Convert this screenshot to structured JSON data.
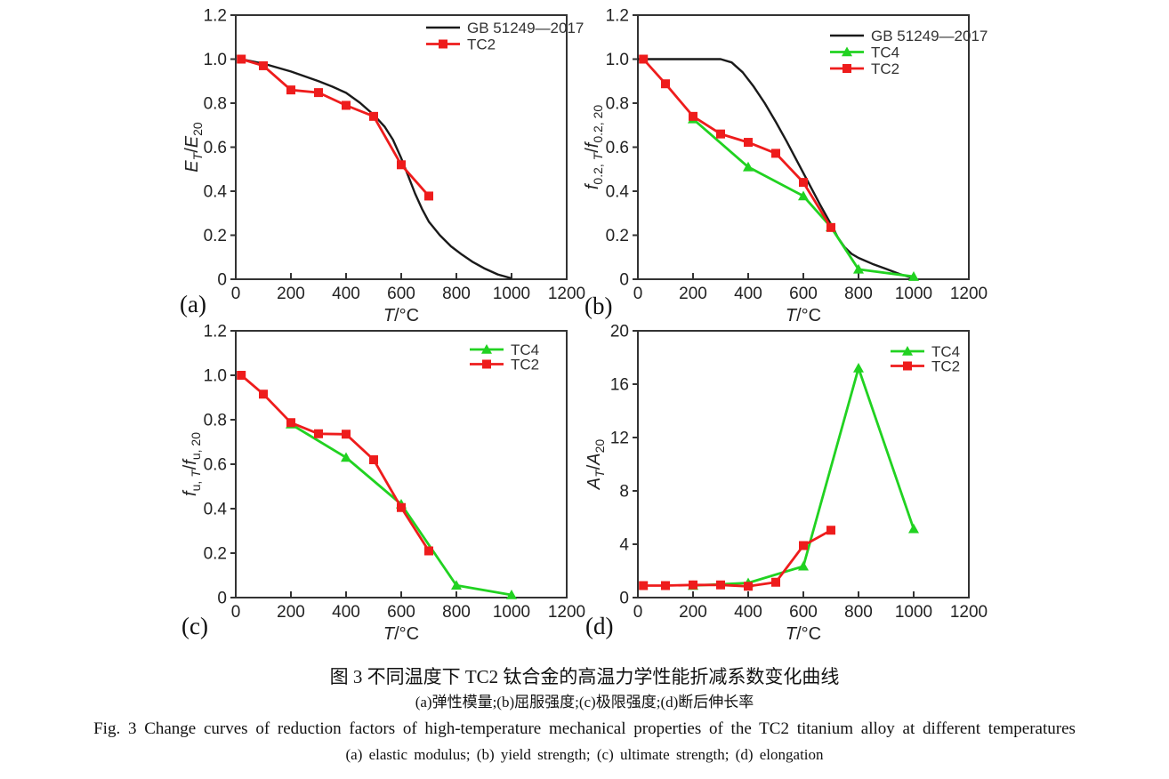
{
  "figure": {
    "caption_zh": "图 3  不同温度下 TC2 钛合金的高温力学性能折减系数变化曲线",
    "caption_zh_sub": "(a)弹性模量;(b)屈服强度;(c)极限强度;(d)断后伸长率",
    "caption_en": "Fig. 3  Change curves of reduction factors of high-temperature mechanical properties of the TC2 titanium alloy at different temperatures",
    "caption_en_sub": "(a) elastic modulus; (b) yield strength; (c) ultimate strength; (d) elongation"
  },
  "panels": [
    {
      "tag": "(a)"
    },
    {
      "tag": "(b)"
    },
    {
      "tag": "(c)"
    },
    {
      "tag": "(d)"
    }
  ],
  "colors": {
    "black": "#1a1a1a",
    "red": "#ee1c1c",
    "green": "#21d221",
    "axis": "#333333",
    "text": "#222222"
  },
  "chart_data": [
    {
      "id": "a",
      "type": "line",
      "xlabel": "T/°C",
      "ylabel": "E_T/E_20",
      "xlabel_parts": [
        [
          "T",
          1,
          0
        ],
        [
          "/°C",
          0,
          0
        ]
      ],
      "ylabel_parts": [
        [
          "E",
          1,
          0
        ],
        [
          "T",
          1,
          1
        ],
        [
          "/",
          0,
          0
        ],
        [
          "E",
          1,
          0
        ],
        [
          "20",
          0,
          1
        ]
      ],
      "xlim": [
        0,
        1200
      ],
      "ylim": [
        0,
        1.2
      ],
      "xticks": {
        "values": [
          0,
          200,
          400,
          600,
          800,
          1000,
          1200
        ],
        "labels": [
          "0",
          "200",
          "400",
          "600",
          "800",
          "1000",
          "1200"
        ]
      },
      "yticks": {
        "values": [
          0,
          0.2,
          0.4,
          0.6,
          0.8,
          1.0,
          1.2
        ],
        "labels": [
          "0",
          "0.2",
          "0.4",
          "0.6",
          "0.8",
          "1.0",
          "1.2"
        ]
      },
      "legend": [
        "GB 51249—2017",
        "TC2"
      ],
      "series": [
        {
          "name": "GB 51249—2017",
          "color": "#1a1a1a",
          "marker": "none",
          "points": [
            [
              20,
              1.0
            ],
            [
              100,
              0.98
            ],
            [
              200,
              0.944
            ],
            [
              300,
              0.9
            ],
            [
              350,
              0.875
            ],
            [
              400,
              0.847
            ],
            [
              450,
              0.802
            ],
            [
              500,
              0.747
            ],
            [
              540,
              0.693
            ],
            [
              570,
              0.634
            ],
            [
              600,
              0.55
            ],
            [
              625,
              0.47
            ],
            [
              650,
              0.39
            ],
            [
              675,
              0.32
            ],
            [
              700,
              0.262
            ],
            [
              740,
              0.2
            ],
            [
              780,
              0.15
            ],
            [
              820,
              0.112
            ],
            [
              860,
              0.078
            ],
            [
              900,
              0.05
            ],
            [
              950,
              0.022
            ],
            [
              1000,
              0.004
            ]
          ]
        },
        {
          "name": "TC2",
          "color": "#ee1c1c",
          "marker": "square",
          "points": [
            [
              20,
              1.0
            ],
            [
              100,
              0.97
            ],
            [
              200,
              0.86
            ],
            [
              300,
              0.848
            ],
            [
              400,
              0.79
            ],
            [
              500,
              0.74
            ],
            [
              600,
              0.52
            ],
            [
              700,
              0.378
            ]
          ]
        }
      ]
    },
    {
      "id": "b",
      "type": "line",
      "xlabel": "T/°C",
      "ylabel": "f_0.2,T/f_0.2,20",
      "xlabel_parts": [
        [
          "T",
          1,
          0
        ],
        [
          "/°C",
          0,
          0
        ]
      ],
      "ylabel_parts": [
        [
          "f",
          1,
          0
        ],
        [
          "0.2, ",
          0,
          1
        ],
        [
          "T",
          1,
          1
        ],
        [
          "/",
          0,
          0
        ],
        [
          "f",
          1,
          0
        ],
        [
          "0.2, 20",
          0,
          1
        ]
      ],
      "xlim": [
        0,
        1200
      ],
      "ylim": [
        0,
        1.2
      ],
      "xticks": {
        "values": [
          0,
          200,
          400,
          600,
          800,
          1000,
          1200
        ],
        "labels": [
          "0",
          "200",
          "400",
          "600",
          "800",
          "1000",
          "1200"
        ]
      },
      "yticks": {
        "values": [
          0,
          0.2,
          0.4,
          0.6,
          0.8,
          1.0,
          1.2
        ],
        "labels": [
          "0",
          "0.2",
          "0.4",
          "0.6",
          "0.8",
          "1.0",
          "1.2"
        ]
      },
      "legend": [
        "GB 51249—2017",
        "TC4",
        "TC2"
      ],
      "series": [
        {
          "name": "GB 51249—2017",
          "color": "#1a1a1a",
          "marker": "none",
          "points": [
            [
              0,
              1.0
            ],
            [
              300,
              1.0
            ],
            [
              340,
              0.985
            ],
            [
              380,
              0.94
            ],
            [
              420,
              0.875
            ],
            [
              460,
              0.8
            ],
            [
              500,
              0.715
            ],
            [
              540,
              0.625
            ],
            [
              580,
              0.53
            ],
            [
              620,
              0.435
            ],
            [
              660,
              0.34
            ],
            [
              700,
              0.25
            ],
            [
              725,
              0.19
            ],
            [
              750,
              0.145
            ],
            [
              775,
              0.115
            ],
            [
              800,
              0.097
            ],
            [
              850,
              0.07
            ],
            [
              900,
              0.047
            ],
            [
              950,
              0.023
            ],
            [
              1000,
              0.004
            ]
          ]
        },
        {
          "name": "TC4",
          "color": "#21d221",
          "marker": "triangle",
          "points": [
            [
              200,
              0.728
            ],
            [
              400,
              0.51
            ],
            [
              600,
              0.378
            ],
            [
              700,
              0.237
            ],
            [
              800,
              0.045
            ],
            [
              1000,
              0.012
            ]
          ]
        },
        {
          "name": "TC2",
          "color": "#ee1c1c",
          "marker": "square",
          "points": [
            [
              20,
              1.0
            ],
            [
              100,
              0.888
            ],
            [
              200,
              0.74
            ],
            [
              300,
              0.66
            ],
            [
              400,
              0.622
            ],
            [
              500,
              0.572
            ],
            [
              600,
              0.44
            ],
            [
              700,
              0.235
            ]
          ]
        }
      ]
    },
    {
      "id": "c",
      "type": "line",
      "xlabel": "T/°C",
      "ylabel": "f_u,T/f_u,20",
      "xlabel_parts": [
        [
          "T",
          1,
          0
        ],
        [
          "/°C",
          0,
          0
        ]
      ],
      "ylabel_parts": [
        [
          "f",
          1,
          0
        ],
        [
          "u, ",
          0,
          1
        ],
        [
          "T",
          1,
          1
        ],
        [
          "/",
          0,
          0
        ],
        [
          "f",
          1,
          0
        ],
        [
          "u, 20",
          0,
          1
        ]
      ],
      "xlim": [
        0,
        1200
      ],
      "ylim": [
        0,
        1.2
      ],
      "xticks": {
        "values": [
          0,
          200,
          400,
          600,
          800,
          1000,
          1200
        ],
        "labels": [
          "0",
          "200",
          "400",
          "600",
          "800",
          "1000",
          "1200"
        ]
      },
      "yticks": {
        "values": [
          0,
          0.2,
          0.4,
          0.6,
          0.8,
          1.0,
          1.2
        ],
        "labels": [
          "0",
          "0.2",
          "0.4",
          "0.6",
          "0.8",
          "1.0",
          "1.2"
        ]
      },
      "legend": [
        "TC4",
        "TC2"
      ],
      "series": [
        {
          "name": "TC4",
          "color": "#21d221",
          "marker": "triangle",
          "points": [
            [
              200,
              0.78
            ],
            [
              400,
              0.63
            ],
            [
              600,
              0.42
            ],
            [
              800,
              0.055
            ],
            [
              1000,
              0.012
            ]
          ]
        },
        {
          "name": "TC2",
          "color": "#ee1c1c",
          "marker": "square",
          "points": [
            [
              20,
              1.0
            ],
            [
              100,
              0.915
            ],
            [
              200,
              0.787
            ],
            [
              300,
              0.737
            ],
            [
              400,
              0.735
            ],
            [
              500,
              0.62
            ],
            [
              600,
              0.405
            ],
            [
              700,
              0.21
            ]
          ]
        }
      ]
    },
    {
      "id": "d",
      "type": "line",
      "xlabel": "T/°C",
      "ylabel": "A_T/A_20",
      "xlabel_parts": [
        [
          "T",
          1,
          0
        ],
        [
          "/°C",
          0,
          0
        ]
      ],
      "ylabel_parts": [
        [
          "A",
          1,
          0
        ],
        [
          "T",
          1,
          1
        ],
        [
          "/",
          0,
          0
        ],
        [
          "A",
          1,
          0
        ],
        [
          "20",
          0,
          1
        ]
      ],
      "xlim": [
        0,
        1200
      ],
      "ylim": [
        0,
        20
      ],
      "xticks": {
        "values": [
          0,
          200,
          400,
          600,
          800,
          1000,
          1200
        ],
        "labels": [
          "0",
          "200",
          "400",
          "600",
          "800",
          "1000",
          "1200"
        ]
      },
      "yticks": {
        "values": [
          0,
          4,
          8,
          12,
          16,
          20
        ],
        "labels": [
          "0",
          "4",
          "8",
          "12",
          "16",
          "20"
        ]
      },
      "legend": [
        "TC4",
        "TC2"
      ],
      "series": [
        {
          "name": "TC4",
          "color": "#21d221",
          "marker": "triangle",
          "points": [
            [
              200,
              0.9
            ],
            [
              400,
              1.1
            ],
            [
              600,
              2.35
            ],
            [
              800,
              17.2
            ],
            [
              1000,
              5.15
            ]
          ]
        },
        {
          "name": "TC2",
          "color": "#ee1c1c",
          "marker": "square",
          "points": [
            [
              20,
              0.9
            ],
            [
              100,
              0.9
            ],
            [
              200,
              0.95
            ],
            [
              300,
              0.95
            ],
            [
              400,
              0.85
            ],
            [
              500,
              1.15
            ],
            [
              600,
              3.9
            ],
            [
              700,
              5.05
            ]
          ]
        }
      ]
    }
  ]
}
